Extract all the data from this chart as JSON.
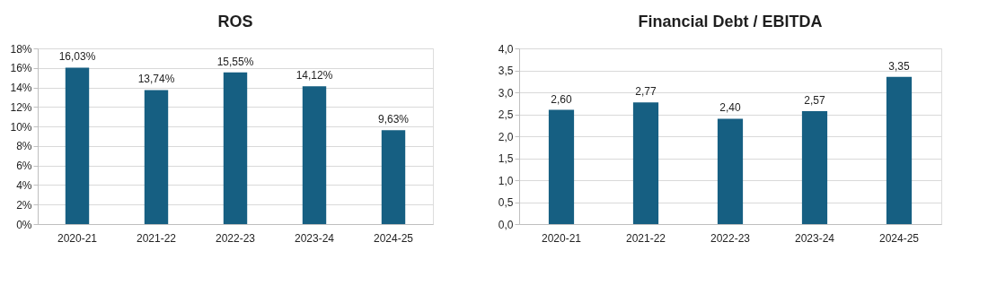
{
  "chart_data": [
    {
      "type": "bar",
      "title": "ROS",
      "categories": [
        "2020-21",
        "2021-22",
        "2022-23",
        "2023-24",
        "2024-25"
      ],
      "values": [
        16.03,
        13.74,
        15.55,
        14.12,
        9.63
      ],
      "color": "#165f82",
      "value_labels": [
        "16,03%",
        "13,74%",
        "15,55%",
        "14,12%",
        "9,63%"
      ],
      "ylim": [
        0,
        18
      ],
      "yticks": [
        {
          "value": 0,
          "label": "0%"
        },
        {
          "value": 2,
          "label": "2%"
        },
        {
          "value": 4,
          "label": "4%"
        },
        {
          "value": 6,
          "label": "6%"
        },
        {
          "value": 8,
          "label": "8%"
        },
        {
          "value": 10,
          "label": "10%"
        },
        {
          "value": 12,
          "label": "12%"
        },
        {
          "value": 14,
          "label": "14%"
        },
        {
          "value": 16,
          "label": "16%"
        },
        {
          "value": 18,
          "label": "18%"
        }
      ],
      "grid": "y"
    },
    {
      "type": "bar",
      "title": "Financial Debt / EBITDA",
      "categories": [
        "2020-21",
        "2021-22",
        "2022-23",
        "2023-24",
        "2024-25"
      ],
      "values": [
        2.6,
        2.77,
        2.4,
        2.57,
        3.35
      ],
      "color": "#165f82",
      "value_labels": [
        "2,60",
        "2,77",
        "2,40",
        "2,57",
        "3,35"
      ],
      "ylim": [
        0,
        4
      ],
      "yticks": [
        {
          "value": 0,
          "label": "0,0"
        },
        {
          "value": 0.5,
          "label": "0,5"
        },
        {
          "value": 1,
          "label": "1,0"
        },
        {
          "value": 1.5,
          "label": "1,5"
        },
        {
          "value": 2,
          "label": "2,0"
        },
        {
          "value": 2.5,
          "label": "2,5"
        },
        {
          "value": 3,
          "label": "3,0"
        },
        {
          "value": 3.5,
          "label": "3,5"
        },
        {
          "value": 4,
          "label": "4,0"
        }
      ],
      "grid": "y"
    }
  ]
}
